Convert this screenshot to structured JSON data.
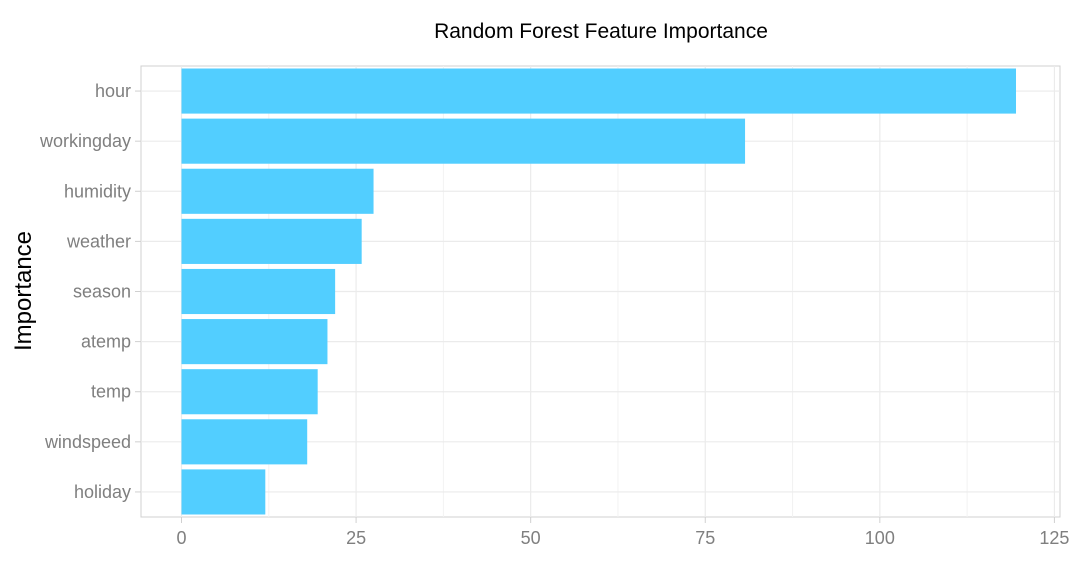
{
  "chart_data": {
    "type": "bar",
    "orientation": "horizontal",
    "title": "Random Forest Feature Importance",
    "xlabel": "",
    "ylabel": "Importance",
    "categories": [
      "hour",
      "workingday",
      "humidity",
      "weather",
      "season",
      "atemp",
      "temp",
      "windspeed",
      "holiday"
    ],
    "values": [
      119.5,
      80.7,
      27.5,
      25.8,
      22.0,
      20.9,
      19.5,
      18.0,
      12.0
    ],
    "xlim": [
      -5.8,
      125.8
    ],
    "xticks": [
      0,
      25,
      50,
      75,
      100,
      125
    ],
    "xtick_labels": [
      "0",
      "25",
      "50",
      "75",
      "100",
      "125"
    ],
    "bar_color": "#52CEFF",
    "grid": true,
    "legend": "none"
  }
}
